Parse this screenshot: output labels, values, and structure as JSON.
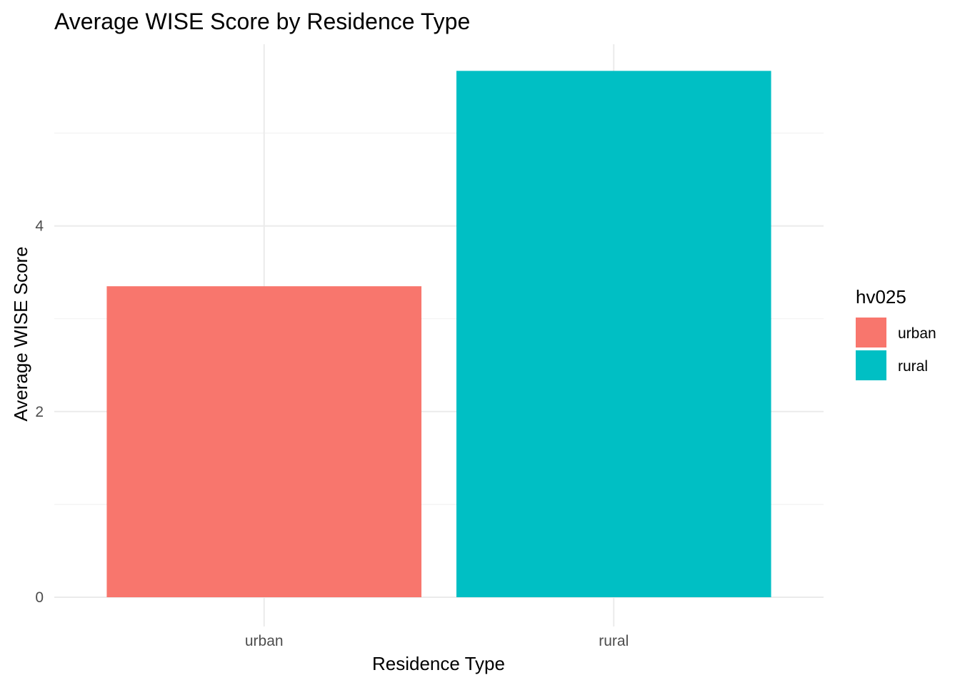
{
  "chart_data": {
    "type": "bar",
    "title": "Average WISE Score by Residence Type",
    "xlabel": "Residence Type",
    "ylabel": "Average WISE Score",
    "categories": [
      "urban",
      "rural"
    ],
    "values": [
      3.35,
      5.67
    ],
    "colors": [
      "#F8766D",
      "#00BFC4"
    ],
    "ylim": [
      0,
      5.95
    ],
    "yticks": [
      0,
      2,
      4
    ],
    "grid": true,
    "legend": {
      "title": "hv025",
      "placement": "right",
      "entries": [
        {
          "label": "urban",
          "color": "#F8766D"
        },
        {
          "label": "rural",
          "color": "#00BFC4"
        }
      ]
    }
  }
}
